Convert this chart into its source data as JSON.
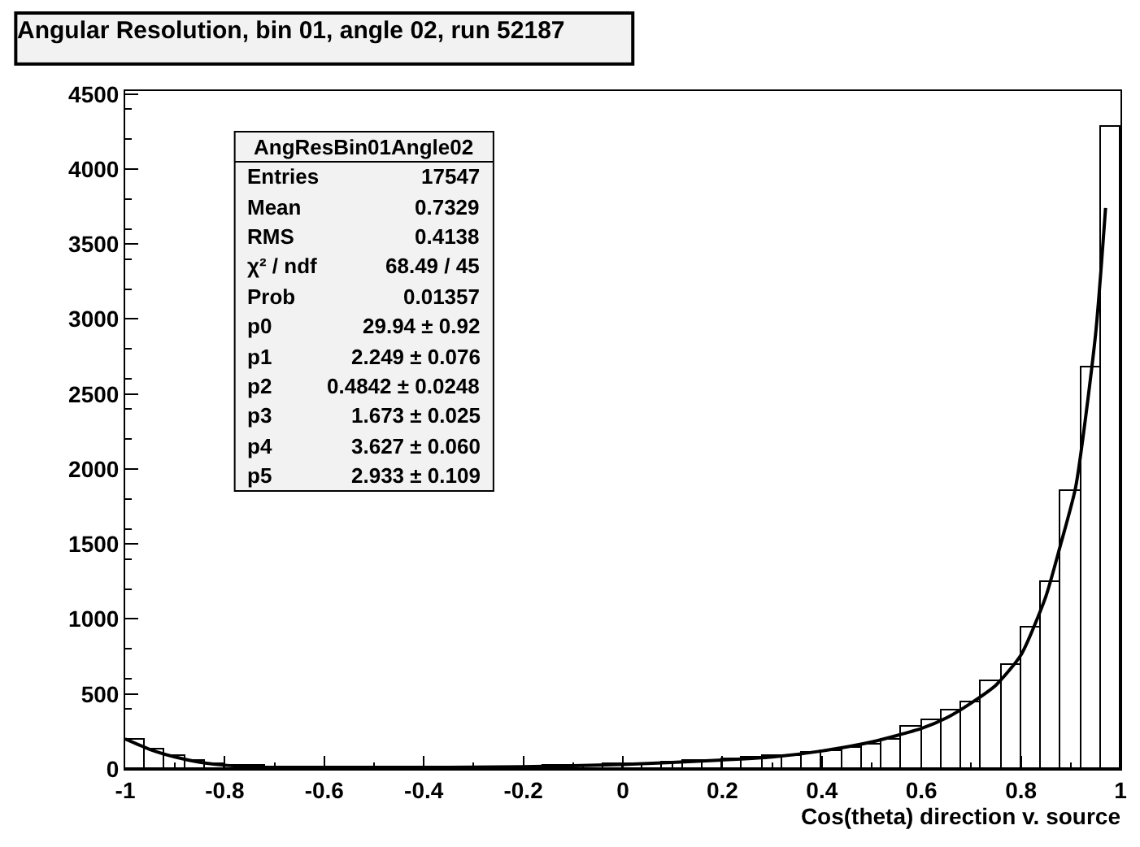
{
  "chart_data": {
    "type": "histogram",
    "title": "Angular Resolution, bin 01, angle 02, run 52187",
    "xlabel": "Cos(theta) direction v. source",
    "bins": [
      -1,
      -0.96,
      -0.92,
      -0.88,
      -0.84,
      -0.8,
      -0.76,
      -0.72,
      -0.68,
      -0.64,
      -0.6,
      -0.56,
      -0.52,
      -0.48,
      -0.44,
      -0.4,
      -0.36,
      -0.32,
      -0.28,
      -0.24,
      -0.2,
      -0.16,
      -0.12,
      -0.08,
      -0.04,
      0,
      0.04,
      0.08,
      0.12,
      0.16,
      0.2,
      0.24,
      0.28,
      0.32,
      0.36,
      0.4,
      0.44,
      0.48,
      0.52,
      0.56,
      0.6,
      0.64,
      0.68,
      0.72,
      0.76,
      0.8,
      0.84,
      0.88,
      0.92,
      0.96,
      1
    ],
    "series": [
      {
        "type": "histogram",
        "color": "#000000",
        "values": [
          190,
          130,
          85,
          55,
          35,
          25,
          20,
          15,
          10,
          10,
          10,
          10,
          10,
          10,
          10,
          10,
          10,
          10,
          15,
          15,
          15,
          20,
          20,
          25,
          30,
          30,
          35,
          40,
          50,
          55,
          60,
          75,
          85,
          90,
          105,
          120,
          140,
          165,
          200,
          280,
          330,
          390,
          440,
          580,
          690,
          940,
          1250,
          1850,
          2680,
          4280
        ]
      },
      {
        "type": "line",
        "color": "#000000",
        "x": [
          -1,
          -0.95,
          -0.9,
          -0.85,
          -0.8,
          -0.7,
          -0.6,
          -0.4,
          -0.2,
          0,
          0.2,
          0.3,
          0.4,
          0.5,
          0.6,
          0.65,
          0.7,
          0.75,
          0.8,
          0.85,
          0.88,
          0.91,
          0.95,
          0.97
        ],
        "values": [
          200,
          130,
          80,
          45,
          25,
          10,
          10,
          10,
          15,
          30,
          60,
          80,
          120,
          180,
          270,
          340,
          440,
          560,
          760,
          1150,
          1500,
          1880,
          2900,
          3740
        ]
      }
    ],
    "xlim": [
      -1,
      1
    ],
    "xticks": [
      -1,
      -0.8,
      -0.6,
      -0.4,
      -0.2,
      0,
      0.2,
      0.4,
      0.6,
      0.8,
      1
    ],
    "ylim": [
      0,
      4520
    ],
    "yticks": [
      0,
      500,
      1000,
      1500,
      2000,
      2500,
      3000,
      3500,
      4000,
      4500
    ],
    "grid": false,
    "marker": "none",
    "line_style": "solid",
    "annotations": [
      "AngResBin01Angle02",
      "Entries",
      "17547",
      "Mean",
      "0.7329",
      "RMS",
      "0.4138",
      "χ² / ndf",
      "68.49 / 45",
      "Prob",
      "0.01357",
      "p0",
      "29.94 ± 0.92",
      "p1",
      "2.249 ± 0.076",
      "p2",
      "0.4842 ± 0.0248",
      "p3",
      "1.673 ± 0.025",
      "p4",
      "3.627 ± 0.060",
      "p5",
      "2.933 ± 0.109"
    ]
  }
}
